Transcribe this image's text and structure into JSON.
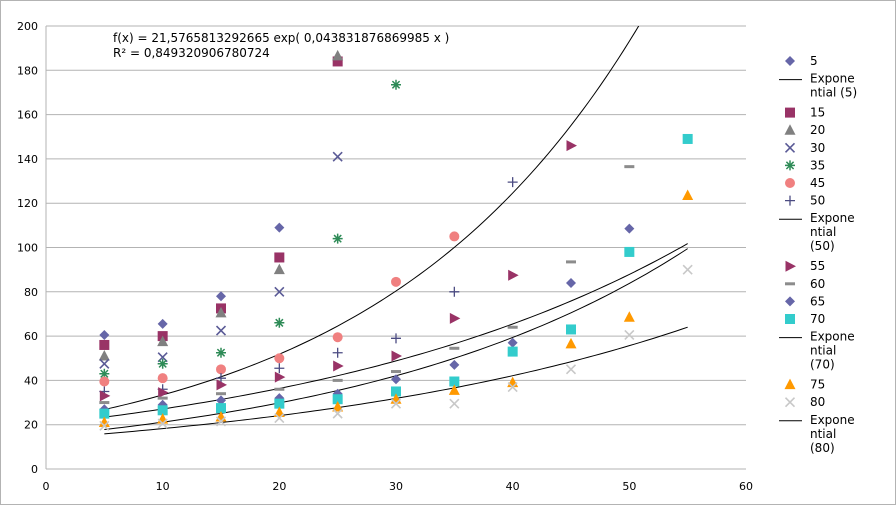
{
  "chart_data": {
    "type": "scatter",
    "xlim": [
      0,
      60
    ],
    "ylim": [
      0,
      200
    ],
    "x_ticks": [
      "0",
      "10",
      "20",
      "30",
      "40",
      "50",
      "60"
    ],
    "y_ticks": [
      "0",
      "20",
      "40",
      "60",
      "80",
      "100",
      "120",
      "140",
      "160",
      "180",
      "200"
    ],
    "grid": "horizontal",
    "legend_position": "right",
    "equation_text": "f(x) = 21,5765813292665 exp( 0,043831876869985 x )",
    "r_squared_text": "R² = 0,849320906780724",
    "series": [
      {
        "name": "5",
        "marker": "diamond",
        "color": "#6666a8",
        "x": [
          5,
          10,
          15,
          20,
          25,
          30,
          35,
          40,
          45,
          50
        ],
        "y": [
          60.5,
          65.5,
          78,
          109,
          34,
          40.5,
          47,
          57,
          84,
          108.5
        ]
      },
      {
        "name": "15",
        "marker": "square",
        "color": "#993366",
        "x": [
          5,
          10,
          15,
          20,
          25
        ],
        "y": [
          56,
          60,
          72.5,
          95.5,
          184
        ]
      },
      {
        "name": "20",
        "marker": "triangle",
        "color": "#808080",
        "x": [
          5,
          10,
          15,
          20,
          25
        ],
        "y": [
          51,
          57.5,
          70.5,
          90,
          186.5
        ]
      },
      {
        "name": "30",
        "marker": "x",
        "color": "#5a5a96",
        "x": [
          5,
          10,
          15,
          20,
          25
        ],
        "y": [
          47.5,
          50.5,
          62.5,
          80,
          141
        ]
      },
      {
        "name": "35",
        "marker": "asterisk",
        "color": "#2e8b57",
        "x": [
          5,
          10,
          15,
          20,
          25,
          30
        ],
        "y": [
          43,
          47.5,
          52.5,
          66,
          104,
          173.5
        ]
      },
      {
        "name": "45",
        "marker": "circle",
        "color": "#f08080",
        "x": [
          5,
          10,
          15,
          20,
          25,
          30,
          35
        ],
        "y": [
          39.5,
          41,
          45,
          50,
          59.5,
          84.5,
          105
        ]
      },
      {
        "name": "50",
        "marker": "plus",
        "color": "#4b4b82",
        "x": [
          5,
          10,
          15,
          20,
          25,
          30,
          35,
          40
        ],
        "y": [
          35,
          36,
          41,
          45.5,
          52.5,
          59,
          80,
          129.5
        ]
      },
      {
        "name": "55",
        "marker": "tri-right",
        "color": "#993366",
        "x": [
          5,
          10,
          15,
          20,
          25,
          30,
          35,
          40,
          45
        ],
        "y": [
          33,
          34.5,
          38,
          41.5,
          46.5,
          51,
          68,
          87.5,
          146
        ]
      },
      {
        "name": "60",
        "marker": "dash",
        "color": "#8c8c8c",
        "x": [
          5,
          10,
          15,
          20,
          25,
          30,
          35,
          40,
          45,
          50
        ],
        "y": [
          30,
          32,
          34,
          36,
          40,
          44,
          54.5,
          64,
          93.5,
          136.5
        ]
      },
      {
        "name": "65",
        "marker": "diamond",
        "color": "#6666a8",
        "x": [
          5,
          10,
          15,
          20
        ],
        "y": [
          27,
          29,
          31,
          32
        ]
      },
      {
        "name": "70",
        "marker": "square",
        "color": "#33cccc",
        "x": [
          5,
          10,
          15,
          20,
          25,
          30,
          35,
          40,
          45,
          50,
          55
        ],
        "y": [
          25,
          26.5,
          27.5,
          29.5,
          31.5,
          35,
          39.5,
          53,
          63,
          98,
          149
        ]
      },
      {
        "name": "75",
        "marker": "triangle",
        "color": "#ff9900",
        "x": [
          5,
          10,
          15,
          20,
          25,
          30,
          35,
          40,
          45,
          50,
          55
        ],
        "y": [
          21,
          22.5,
          23.5,
          25.5,
          28,
          31.5,
          35.5,
          39,
          56.5,
          68.5,
          123.5
        ]
      },
      {
        "name": "80",
        "marker": "x",
        "color": "#c8c8c8",
        "x": [
          5,
          10,
          15,
          20,
          25,
          30,
          35,
          40,
          45,
          50,
          55
        ],
        "y": [
          19.5,
          20.5,
          21.5,
          23,
          25,
          29.5,
          29.5,
          37,
          45,
          60.5,
          90
        ]
      }
    ],
    "trendlines": [
      {
        "name": "Exponential (5)",
        "a": 21.5765813292665,
        "b": 0.043831876869985,
        "x_range": [
          5,
          60
        ]
      },
      {
        "name": "Exponential (50)",
        "a": 20.2,
        "b": 0.0294,
        "x_range": [
          5,
          55
        ]
      },
      {
        "name": "Exponential (70)",
        "a": 15.0,
        "b": 0.0344,
        "x_range": [
          5,
          55
        ]
      },
      {
        "name": "Exponential (80)",
        "a": 13.8,
        "b": 0.0279,
        "x_range": [
          5,
          55
        ]
      }
    ],
    "legend": [
      {
        "type": "marker",
        "series": "5",
        "label": "5"
      },
      {
        "type": "line",
        "label_lines": [
          "Expone",
          "ntial (5)"
        ]
      },
      {
        "type": "marker",
        "series": "15",
        "label": "15"
      },
      {
        "type": "marker",
        "series": "20",
        "label": "20"
      },
      {
        "type": "marker",
        "series": "30",
        "label": "30"
      },
      {
        "type": "marker",
        "series": "35",
        "label": "35"
      },
      {
        "type": "marker",
        "series": "45",
        "label": "45"
      },
      {
        "type": "marker",
        "series": "50",
        "label": "50"
      },
      {
        "type": "line",
        "label_lines": [
          "Expone",
          "ntial",
          "(50)"
        ]
      },
      {
        "type": "marker",
        "series": "55",
        "label": "55"
      },
      {
        "type": "marker",
        "series": "60",
        "label": "60"
      },
      {
        "type": "marker",
        "series": "65",
        "label": "65"
      },
      {
        "type": "marker",
        "series": "70",
        "label": "70"
      },
      {
        "type": "line",
        "label_lines": [
          "Expone",
          "ntial",
          "(70)"
        ]
      },
      {
        "type": "marker",
        "series": "75",
        "label": "75"
      },
      {
        "type": "marker",
        "series": "80",
        "label": "80"
      },
      {
        "type": "line",
        "label_lines": [
          "Expone",
          "ntial",
          "(80)"
        ]
      }
    ]
  }
}
